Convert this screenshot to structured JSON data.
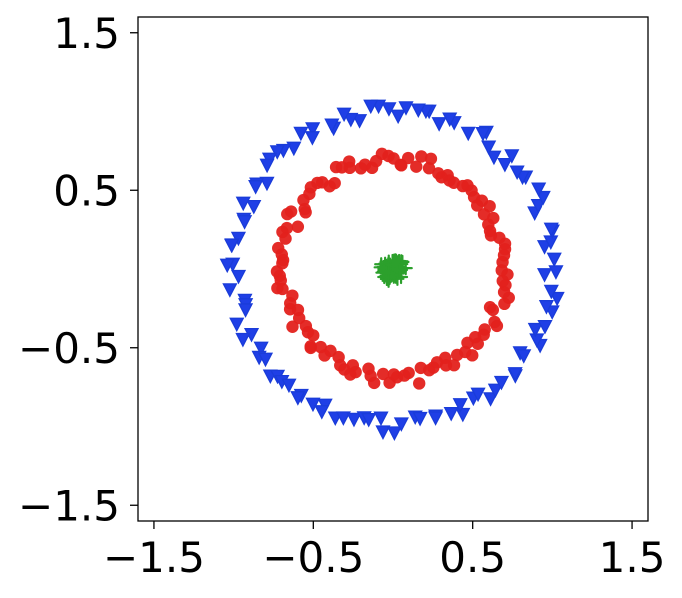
{
  "chart_data": {
    "type": "scatter",
    "title": "",
    "xlabel": "",
    "ylabel": "",
    "xlim": [
      -1.6,
      1.6
    ],
    "ylim": [
      -1.6,
      1.6
    ],
    "x_ticks": [
      -1.5,
      -0.5,
      0.5,
      1.5
    ],
    "y_ticks": [
      1.5,
      0.5,
      -0.5,
      -1.5
    ],
    "x_tick_labels": [
      "−1.5",
      "−0.5",
      "0.5",
      "1.5"
    ],
    "y_tick_labels": [
      "1.5",
      "0.5",
      "−0.5",
      "−1.5"
    ],
    "grid": false,
    "legend": false,
    "series": [
      {
        "marker": "triangle-down",
        "color": "#1f3fe6",
        "edge_color": "#1a3cd9",
        "ring_radius": 1.0,
        "count": 110
      },
      {
        "marker": "circle",
        "color": "#e3211c",
        "ring_radius": 0.7,
        "count": 120
      },
      {
        "marker": "plus",
        "color": "#2ca02c",
        "center": [
          0,
          0
        ],
        "radius": 0.08,
        "count": 100
      }
    ]
  }
}
